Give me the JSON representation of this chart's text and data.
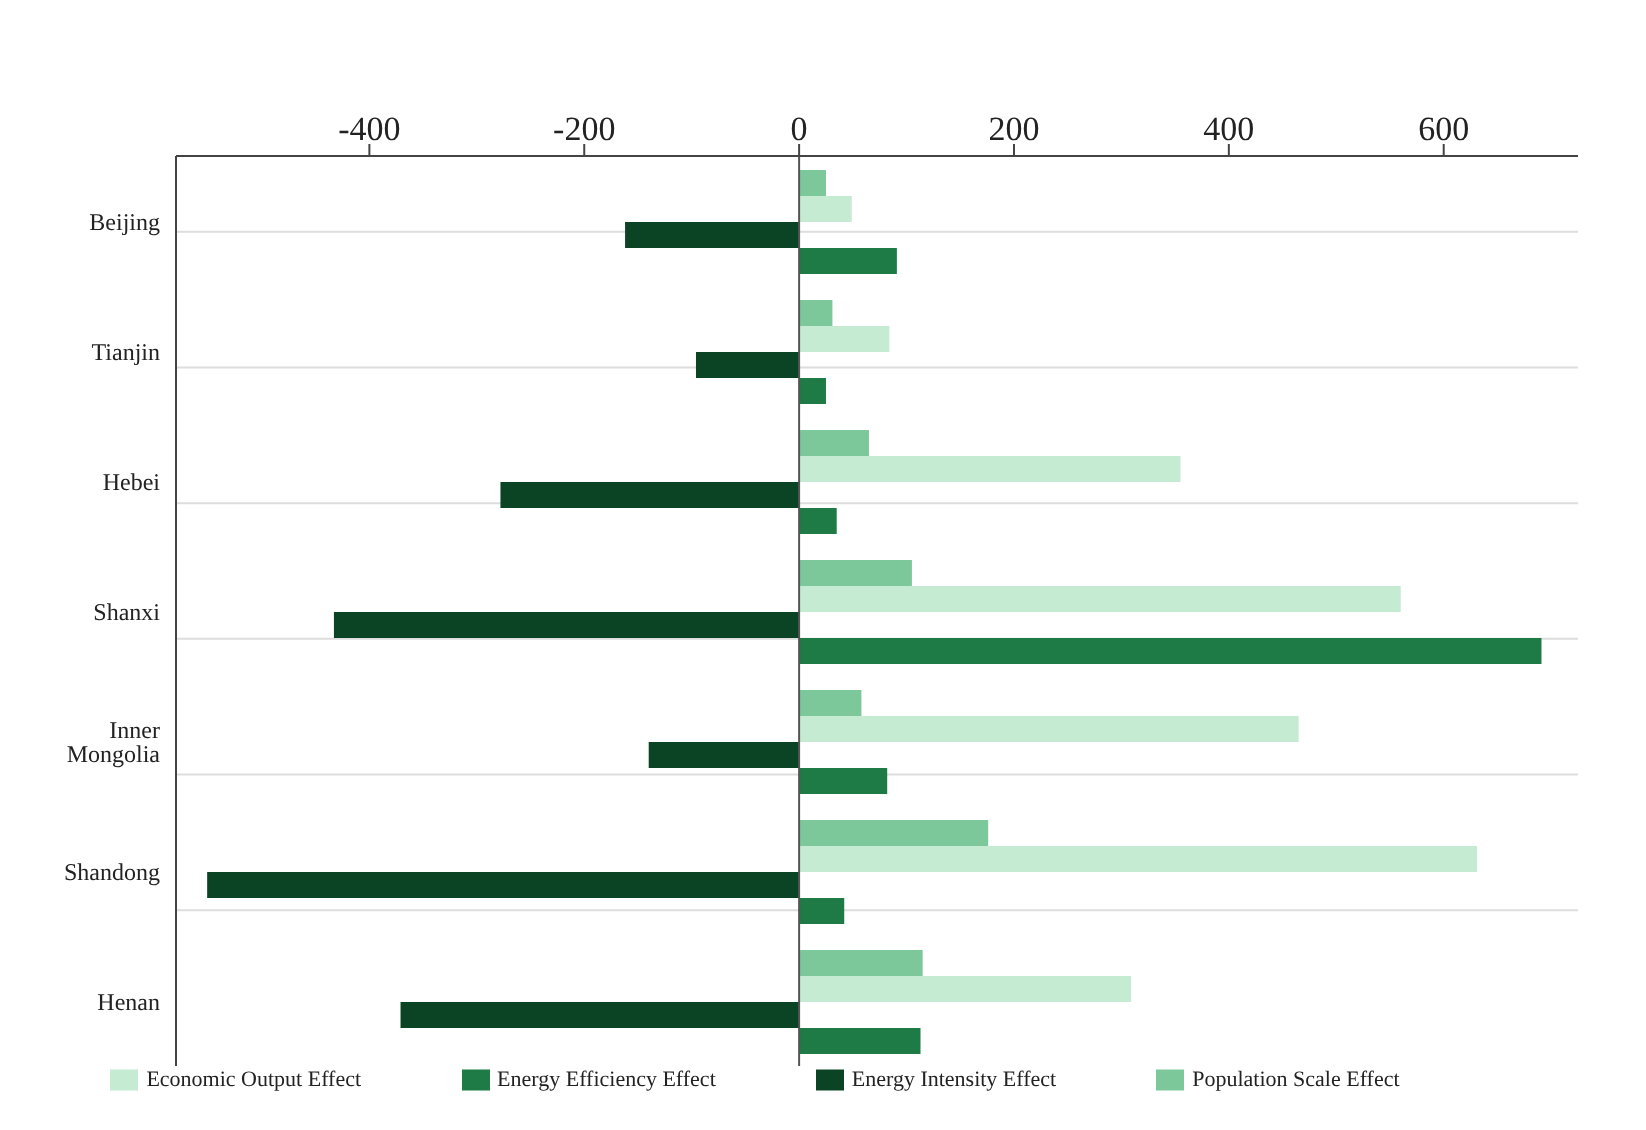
{
  "chart_data": {
    "type": "bar",
    "orientation": "horizontal",
    "categories": [
      "Beijing",
      "Tianjin",
      "Hebei",
      "Shanxi",
      "Inner Mongolia",
      "Shandong",
      "Henan"
    ],
    "series": [
      {
        "name": "Energy Efficiency Effect",
        "color": "#1e7b45",
        "values": [
          91,
          25,
          35,
          691,
          82,
          42,
          113
        ]
      },
      {
        "name": "Energy Intensity Effect",
        "color": "#0b4425",
        "values": [
          -162,
          -96,
          -278,
          -433,
          -140,
          -551,
          -371
        ]
      },
      {
        "name": "Economic Output Effect",
        "color": "#c5ebd3",
        "values": [
          49,
          84,
          355,
          560,
          465,
          631,
          309
        ]
      },
      {
        "name": "Population Scale Effect",
        "color": "#7dc89a",
        "values": [
          25,
          31,
          65,
          105,
          58,
          176,
          115
        ]
      }
    ],
    "xlim": [
      -580,
      725
    ],
    "xticks": [
      -400,
      -200,
      0,
      200,
      400,
      600
    ],
    "grid": "y",
    "legend": "bottom",
    "ref_lines": [
      {
        "axis": "x",
        "value": 0,
        "color": "#555555"
      }
    ]
  }
}
